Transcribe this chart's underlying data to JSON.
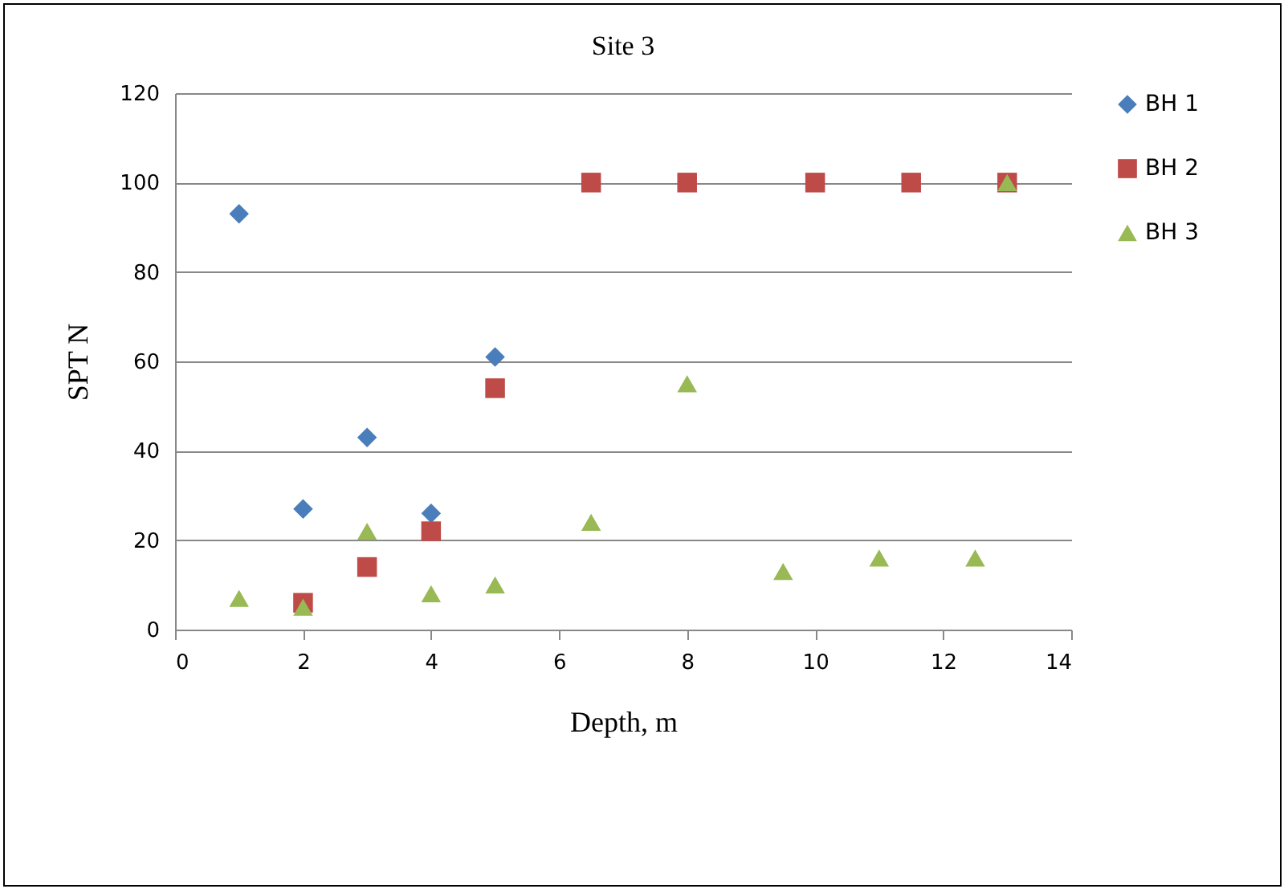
{
  "chart_data": {
    "type": "scatter",
    "title": "Site 3",
    "xlabel": "Depth, m",
    "ylabel": "SPT N",
    "xlim": [
      0,
      14
    ],
    "xticks": [
      0,
      2,
      4,
      6,
      8,
      10,
      12,
      14
    ],
    "ylim": [
      0,
      120
    ],
    "yticks": [
      0,
      20,
      40,
      60,
      80,
      100,
      120
    ],
    "grid": "y",
    "legend": "right",
    "series": [
      {
        "name": "BH 1",
        "color": "#4a7ebb",
        "marker": "diamond",
        "x": [
          1,
          2,
          3,
          4,
          5
        ],
        "values": [
          93,
          27,
          43,
          26,
          61
        ]
      },
      {
        "name": "BH 2",
        "color": "#be4b48",
        "marker": "square",
        "x": [
          2,
          3,
          4,
          5,
          6.5,
          8,
          10,
          11.5,
          13
        ],
        "values": [
          6,
          14,
          22,
          54,
          100,
          100,
          100,
          100,
          100
        ]
      },
      {
        "name": "BH 3",
        "color": "#98b954",
        "marker": "triangle",
        "x": [
          1,
          2,
          3,
          4,
          5,
          6.5,
          8,
          9.5,
          11,
          12.5,
          13
        ],
        "values": [
          7,
          5,
          22,
          8,
          10,
          24,
          55,
          13,
          16,
          16,
          100
        ]
      }
    ]
  }
}
